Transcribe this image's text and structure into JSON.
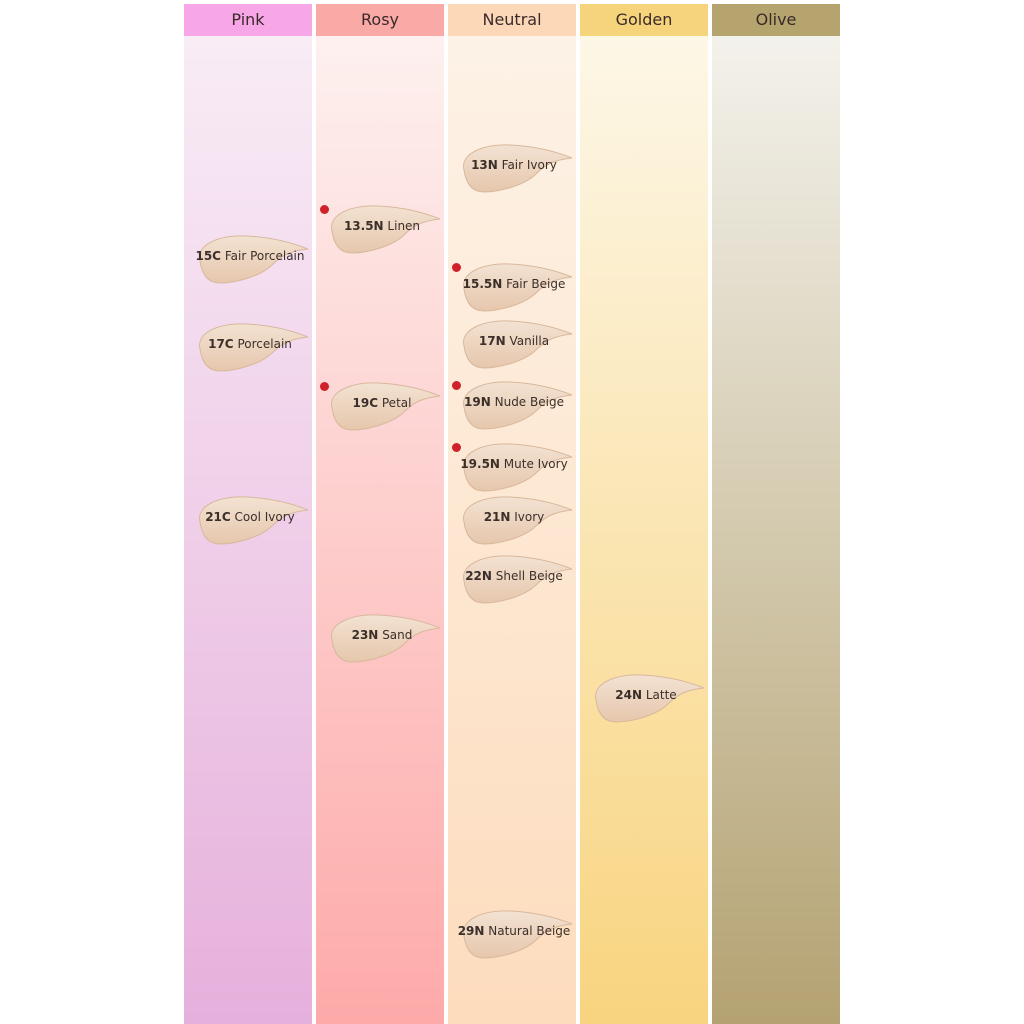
{
  "columns": [
    {
      "title": "Pink",
      "shades": [
        {
          "code": "15C",
          "name": "Fair Porcelain",
          "dot": false
        },
        {
          "code": "17C",
          "name": "Porcelain",
          "dot": false
        },
        {
          "code": "21C",
          "name": "Cool Ivory",
          "dot": false
        }
      ]
    },
    {
      "title": "Rosy",
      "shades": [
        {
          "code": "13.5N",
          "name": "Linen",
          "dot": true
        },
        {
          "code": "19C",
          "name": "Petal",
          "dot": true
        },
        {
          "code": "23N",
          "name": "Sand",
          "dot": false
        }
      ]
    },
    {
      "title": "Neutral",
      "shades": [
        {
          "code": "13N",
          "name": "Fair Ivory",
          "dot": false
        },
        {
          "code": "15.5N",
          "name": "Fair Beige",
          "dot": true
        },
        {
          "code": "17N",
          "name": "Vanilla",
          "dot": false
        },
        {
          "code": "19N",
          "name": "Nude Beige",
          "dot": true
        },
        {
          "code": "19.5N",
          "name": "Mute Ivory",
          "dot": true
        },
        {
          "code": "21N",
          "name": "Ivory",
          "dot": false
        },
        {
          "code": "22N",
          "name": "Shell Beige",
          "dot": false
        },
        {
          "code": "29N",
          "name": "Natural Beige",
          "dot": false
        }
      ]
    },
    {
      "title": "Golden",
      "shades": [
        {
          "code": "24N",
          "name": "Latte",
          "dot": false
        }
      ]
    },
    {
      "title": "Olive",
      "shades": []
    }
  ]
}
